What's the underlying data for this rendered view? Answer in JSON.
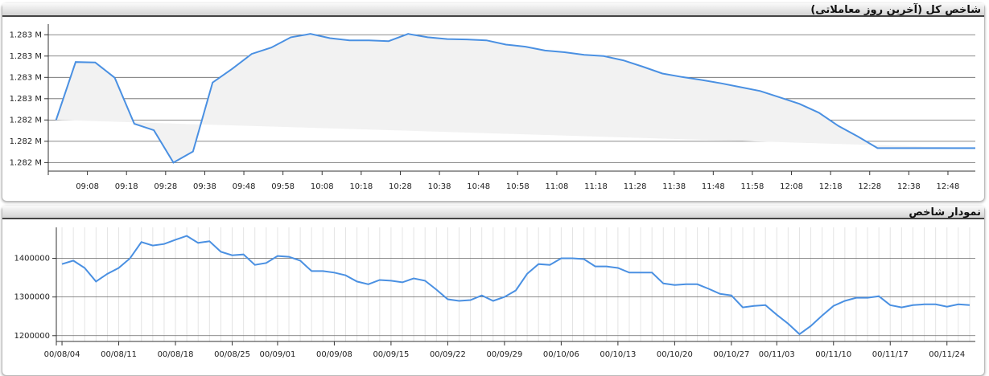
{
  "chart_data": [
    {
      "type": "line",
      "title": "شاخص کل (آخرین روز معاملاتی)",
      "color": "#4a90e2",
      "fill": "#f2f2f2",
      "grid": true,
      "x": [
        "09:00",
        "09:05",
        "09:10",
        "09:15",
        "09:20",
        "09:25",
        "09:30",
        "09:35",
        "09:40",
        "09:45",
        "09:50",
        "09:55",
        "10:00",
        "10:05",
        "10:10",
        "10:15",
        "10:20",
        "10:25",
        "10:30",
        "10:35",
        "10:40",
        "10:45",
        "10:50",
        "10:55",
        "11:00",
        "11:05",
        "11:10",
        "11:15",
        "11:20",
        "11:25",
        "11:30",
        "11:35",
        "11:40",
        "11:45",
        "11:50",
        "11:55",
        "12:00",
        "12:05",
        "12:10",
        "12:15",
        "12:20",
        "12:25",
        "12:30",
        "12:35",
        "12:40",
        "12:45",
        "12:50",
        "12:55"
      ],
      "values": [
        1282450,
        1282586,
        1282585,
        1282549,
        1282441,
        1282426,
        1282350,
        1282376,
        1282538,
        1282570,
        1282605,
        1282620,
        1282644,
        1282652,
        1282642,
        1282637,
        1282637,
        1282635,
        1282652,
        1282644,
        1282640,
        1282639,
        1282637,
        1282627,
        1282622,
        1282613,
        1282609,
        1282603,
        1282600,
        1282590,
        1282575,
        1282559,
        1282551,
        1282544,
        1282536,
        1282527,
        1282518,
        1282503,
        1282488,
        1282467,
        1282436,
        1282411,
        1282384,
        1282384,
        1282384,
        1282384,
        1282384,
        1282384
      ],
      "xlim": [
        "08:58",
        "12:55"
      ],
      "xticks": [
        "09:08",
        "09:18",
        "09:28",
        "09:38",
        "09:48",
        "09:58",
        "10:08",
        "10:18",
        "10:28",
        "10:38",
        "10:48",
        "10:58",
        "11:08",
        "11:18",
        "11:28",
        "11:38",
        "11:48",
        "11:58",
        "12:08",
        "12:18",
        "12:28",
        "12:38",
        "12:48"
      ],
      "ylim": [
        1282330,
        1282675
      ],
      "yticks": [
        {
          "value": 1282350,
          "label": "1.282 M"
        },
        {
          "value": 1282400,
          "label": "1.282 M"
        },
        {
          "value": 1282450,
          "label": "1.282 M"
        },
        {
          "value": 1282500,
          "label": "1.283 M"
        },
        {
          "value": 1282550,
          "label": "1.283 M"
        },
        {
          "value": 1282600,
          "label": "1.283 M"
        },
        {
          "value": 1282650,
          "label": "1.283 M"
        }
      ]
    },
    {
      "type": "line",
      "title": "نمودار شاخص",
      "color": "#4a90e2",
      "grid": true,
      "categories": [
        "00/08/04",
        null,
        null,
        null,
        null,
        "00/08/11",
        null,
        null,
        null,
        null,
        "00/08/18",
        null,
        null,
        null,
        null,
        "00/08/25",
        null,
        null,
        null,
        "00/09/01",
        null,
        null,
        null,
        null,
        "00/09/08",
        null,
        null,
        null,
        null,
        "00/09/15",
        null,
        null,
        null,
        null,
        "00/09/22",
        null,
        null,
        null,
        null,
        "00/09/29",
        null,
        null,
        null,
        null,
        "00/10/06",
        null,
        null,
        null,
        null,
        "00/10/13",
        null,
        null,
        null,
        null,
        "00/10/20",
        null,
        null,
        null,
        null,
        "00/10/27",
        null,
        null,
        null,
        "00/11/03",
        null,
        null,
        null,
        null,
        "00/11/10",
        null,
        null,
        null,
        null,
        "00/11/17",
        null,
        null,
        null,
        null,
        "00/11/24",
        null,
        null
      ],
      "values": [
        1385000,
        1394000,
        1375000,
        1340000,
        1360000,
        1375000,
        1400000,
        1442000,
        1433000,
        1437000,
        1448000,
        1458000,
        1440000,
        1444000,
        1417000,
        1408000,
        1410000,
        1383000,
        1388000,
        1406000,
        1404000,
        1394000,
        1367000,
        1367000,
        1363000,
        1356000,
        1340000,
        1333000,
        1344000,
        1342000,
        1338000,
        1348000,
        1342000,
        1319000,
        1294000,
        1290000,
        1292000,
        1304000,
        1290000,
        1300000,
        1317000,
        1360000,
        1385000,
        1383000,
        1400000,
        1400000,
        1398000,
        1379000,
        1379000,
        1375000,
        1363000,
        1363000,
        1363000,
        1335000,
        1331000,
        1333000,
        1333000,
        1321000,
        1308000,
        1304000,
        1273000,
        1277000,
        1279000,
        1254000,
        1231000,
        1204000,
        1225000,
        1252000,
        1277000,
        1290000,
        1298000,
        1298000,
        1302000,
        1279000,
        1273000,
        1279000,
        1281000,
        1281000,
        1275000,
        1281000,
        1279000
      ],
      "ylim": [
        1185000,
        1480000
      ],
      "yticks": [
        1200000,
        1300000,
        1400000
      ]
    }
  ]
}
